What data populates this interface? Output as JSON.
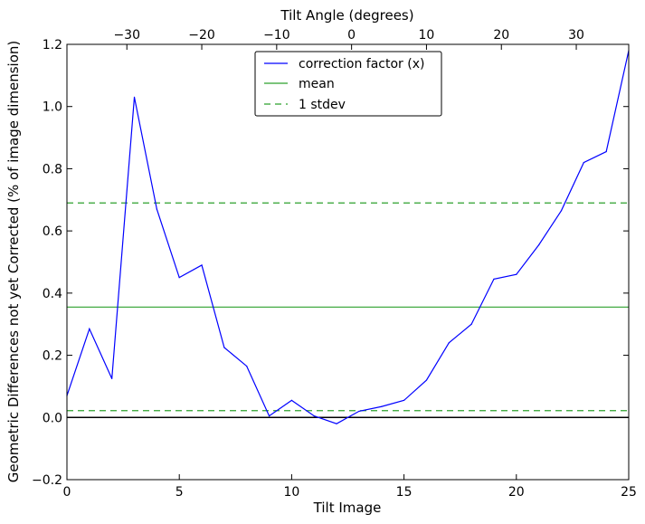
{
  "chart_data": {
    "type": "line",
    "xlabel": "Tilt Image",
    "ylabel": "Geometric Differences not yet Corrected (% of image dimension)",
    "top_xlabel": "Tilt Angle (degrees)",
    "xlim": [
      0,
      25
    ],
    "ylim": [
      -0.2,
      1.2
    ],
    "top_xlim": [
      -38,
      37
    ],
    "x_ticks": [
      0,
      5,
      10,
      15,
      20,
      25
    ],
    "x_tick_labels": [
      "0",
      "5",
      "10",
      "15",
      "20",
      "25"
    ],
    "y_ticks": [
      -0.2,
      0.0,
      0.2,
      0.4,
      0.6,
      0.8,
      1.0,
      1.2
    ],
    "y_tick_labels": [
      "−0.2",
      "0.0",
      "0.2",
      "0.4",
      "0.6",
      "0.8",
      "1.0",
      "1.2"
    ],
    "top_ticks": [
      -30,
      -20,
      -10,
      0,
      10,
      20,
      30
    ],
    "top_tick_labels": [
      "−30",
      "−20",
      "−10",
      "0",
      "10",
      "20",
      "30"
    ],
    "grid": false,
    "legend_position": "top-center",
    "zero_line": 0.0,
    "series": [
      {
        "name": "correction factor (x)",
        "style": "solid",
        "color": "#0000ff",
        "x": [
          0,
          1,
          2,
          3,
          4,
          5,
          6,
          7,
          8,
          9,
          10,
          11,
          12,
          13,
          14,
          15,
          16,
          17,
          18,
          19,
          20,
          21,
          22,
          23,
          24,
          25
        ],
        "y": [
          0.07,
          0.285,
          0.125,
          1.03,
          0.67,
          0.45,
          0.49,
          0.225,
          0.165,
          0.005,
          0.055,
          0.005,
          -0.02,
          0.02,
          0.035,
          0.055,
          0.12,
          0.24,
          0.3,
          0.445,
          0.46,
          0.555,
          0.665,
          0.82,
          0.855,
          1.18
        ]
      },
      {
        "name": "mean",
        "style": "solid",
        "color": "#2ca02c",
        "y_constant": 0.355
      },
      {
        "name": "1 stdev",
        "style": "dashed",
        "color": "#2ca02c",
        "y_constant": [
          0.69,
          0.022
        ]
      }
    ]
  }
}
